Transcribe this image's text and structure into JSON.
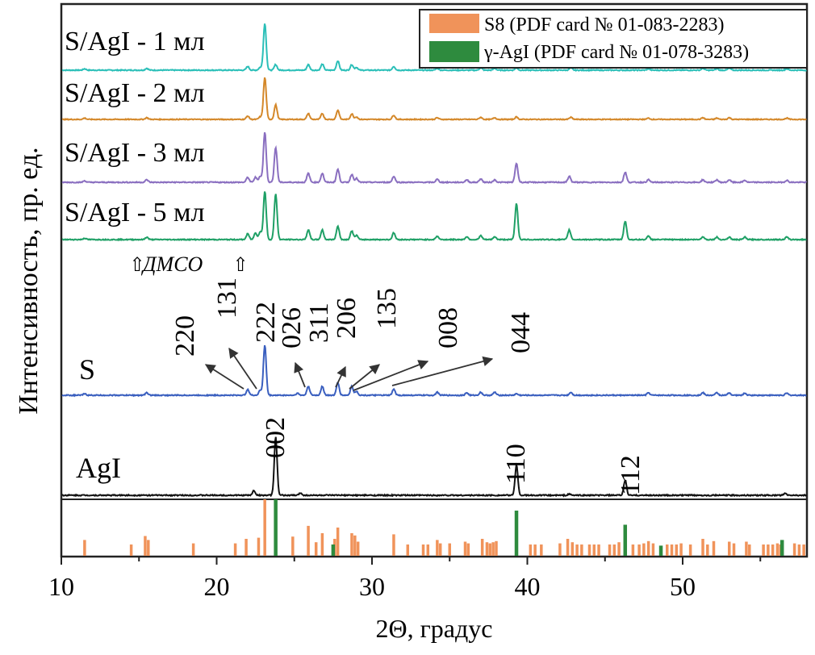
{
  "chart_data": {
    "type": "line",
    "xlabel": "2Θ, градус",
    "ylabel": "Интенсивность, пр. ед.",
    "xlim": [
      10,
      58
    ],
    "xticks": [
      10,
      20,
      30,
      40,
      50
    ],
    "grid": false,
    "legend": {
      "placement": "top-right",
      "entries": [
        {
          "name": "S8 (PDF card № 01-083-2283)",
          "color": "#f0935a"
        },
        {
          "name": "γ-AgI (PDF card № 01-078-3283)",
          "color": "#2e8b3e"
        }
      ]
    },
    "series": [
      {
        "name": "S/AgI - 1 мл",
        "color": "#2bbfb8",
        "peaks": [
          [
            11.5,
            0.03
          ],
          [
            15.5,
            0.04
          ],
          [
            22.0,
            0.08
          ],
          [
            22.8,
            0.06
          ],
          [
            23.1,
            1
          ],
          [
            23.8,
            0.12
          ],
          [
            25.9,
            0.12
          ],
          [
            26.8,
            0.13
          ],
          [
            27.8,
            0.2
          ],
          [
            28.7,
            0.12
          ],
          [
            29.0,
            0.06
          ],
          [
            31.4,
            0.08
          ],
          [
            34.2,
            0.04
          ],
          [
            37.0,
            0.05
          ],
          [
            37.9,
            0.04
          ],
          [
            39.3,
            0.05
          ],
          [
            42.8,
            0.05
          ],
          [
            47.8,
            0.03
          ],
          [
            51.3,
            0.04
          ],
          [
            52.2,
            0.03
          ],
          [
            53.0,
            0.04
          ],
          [
            56.7,
            0.03
          ]
        ]
      },
      {
        "name": "S/AgI - 2 мл",
        "color": "#d4882a",
        "peaks": [
          [
            11.5,
            0.03
          ],
          [
            15.5,
            0.04
          ],
          [
            22.0,
            0.08
          ],
          [
            22.8,
            0.06
          ],
          [
            23.1,
            1
          ],
          [
            23.8,
            0.35
          ],
          [
            25.9,
            0.14
          ],
          [
            26.8,
            0.14
          ],
          [
            27.8,
            0.22
          ],
          [
            28.7,
            0.13
          ],
          [
            29.0,
            0.06
          ],
          [
            31.4,
            0.1
          ],
          [
            34.2,
            0.04
          ],
          [
            37.0,
            0.05
          ],
          [
            37.9,
            0.04
          ],
          [
            39.3,
            0.06
          ],
          [
            42.8,
            0.05
          ],
          [
            47.8,
            0.03
          ],
          [
            51.3,
            0.04
          ],
          [
            52.2,
            0.03
          ],
          [
            53.0,
            0.04
          ],
          [
            56.7,
            0.03
          ]
        ]
      },
      {
        "name": "S/AgI - 3 мл",
        "color": "#8a6fc0",
        "peaks": [
          [
            11.5,
            0.03
          ],
          [
            15.5,
            0.05
          ],
          [
            22.0,
            0.1
          ],
          [
            22.5,
            0.1
          ],
          [
            22.8,
            0.12
          ],
          [
            23.1,
            1
          ],
          [
            23.8,
            0.7
          ],
          [
            25.9,
            0.18
          ],
          [
            26.8,
            0.18
          ],
          [
            27.8,
            0.26
          ],
          [
            28.7,
            0.16
          ],
          [
            29.0,
            0.08
          ],
          [
            31.4,
            0.12
          ],
          [
            34.2,
            0.06
          ],
          [
            36.1,
            0.05
          ],
          [
            37.0,
            0.07
          ],
          [
            37.9,
            0.05
          ],
          [
            39.3,
            0.38
          ],
          [
            42.7,
            0.12
          ],
          [
            46.3,
            0.2
          ],
          [
            47.8,
            0.05
          ],
          [
            51.3,
            0.05
          ],
          [
            52.2,
            0.05
          ],
          [
            53.0,
            0.05
          ],
          [
            54.0,
            0.04
          ],
          [
            56.7,
            0.04
          ]
        ]
      },
      {
        "name": "S/AgI - 5 мл",
        "color": "#1fa066",
        "peaks": [
          [
            11.5,
            0.03
          ],
          [
            15.5,
            0.05
          ],
          [
            22.0,
            0.12
          ],
          [
            22.5,
            0.14
          ],
          [
            22.8,
            0.16
          ],
          [
            23.1,
            1
          ],
          [
            23.8,
            0.95
          ],
          [
            25.9,
            0.2
          ],
          [
            26.8,
            0.2
          ],
          [
            27.8,
            0.28
          ],
          [
            28.7,
            0.18
          ],
          [
            29.0,
            0.09
          ],
          [
            31.4,
            0.14
          ],
          [
            34.2,
            0.07
          ],
          [
            36.1,
            0.06
          ],
          [
            37.0,
            0.08
          ],
          [
            37.9,
            0.06
          ],
          [
            39.3,
            0.75
          ],
          [
            42.7,
            0.2
          ],
          [
            46.3,
            0.38
          ],
          [
            47.8,
            0.07
          ],
          [
            51.3,
            0.06
          ],
          [
            52.2,
            0.05
          ],
          [
            53.0,
            0.05
          ],
          [
            54.0,
            0.05
          ],
          [
            56.7,
            0.05
          ]
        ]
      },
      {
        "name": "S",
        "color": "#3a5fbf",
        "peaks": [
          [
            11.5,
            0.03
          ],
          [
            15.5,
            0.05
          ],
          [
            22.0,
            0.12
          ],
          [
            22.8,
            0.1
          ],
          [
            23.1,
            1
          ],
          [
            25.2,
            0.04
          ],
          [
            25.9,
            0.18
          ],
          [
            26.8,
            0.18
          ],
          [
            27.8,
            0.25
          ],
          [
            28.7,
            0.18
          ],
          [
            29.0,
            0.08
          ],
          [
            31.4,
            0.12
          ],
          [
            34.2,
            0.06
          ],
          [
            36.1,
            0.05
          ],
          [
            37.0,
            0.06
          ],
          [
            37.9,
            0.06
          ],
          [
            39.3,
            0.03
          ],
          [
            42.8,
            0.06
          ],
          [
            47.8,
            0.05
          ],
          [
            51.3,
            0.05
          ],
          [
            52.2,
            0.05
          ],
          [
            53.0,
            0.05
          ],
          [
            54.0,
            0.04
          ],
          [
            56.7,
            0.04
          ]
        ]
      },
      {
        "name": "AgI",
        "color": "#111111",
        "peaks": [
          [
            22.4,
            0.08
          ],
          [
            23.8,
            1
          ],
          [
            25.4,
            0.04
          ],
          [
            39.3,
            0.52
          ],
          [
            42.7,
            0.02
          ],
          [
            46.3,
            0.26
          ],
          [
            56.6,
            0.03
          ]
        ]
      }
    ],
    "annotations": {
      "dmso": "ДМСО",
      "s_hkl": [
        {
          "label": "220",
          "x": 22.0
        },
        {
          "label": "131",
          "x": 22.8
        },
        {
          "label": "222",
          "x": 23.1
        },
        {
          "label": "026",
          "x": 25.9
        },
        {
          "label": "311",
          "x": 26.8
        },
        {
          "label": "206",
          "x": 27.8
        },
        {
          "label": "135",
          "x": 28.7
        },
        {
          "label": "008",
          "x": 29.0
        },
        {
          "label": "044",
          "x": 31.4
        }
      ],
      "agi_hkl": [
        {
          "label": "002",
          "x": 23.8
        },
        {
          "label": "110",
          "x": 39.3
        },
        {
          "label": "112",
          "x": 46.3
        }
      ]
    },
    "reference_sticks": {
      "S8": [
        [
          11.5,
          0.28
        ],
        [
          14.5,
          0.2
        ],
        [
          15.4,
          0.35
        ],
        [
          15.6,
          0.28
        ],
        [
          18.5,
          0.22
        ],
        [
          21.2,
          0.22
        ],
        [
          21.9,
          0.3
        ],
        [
          22.7,
          0.32
        ],
        [
          23.1,
          1
        ],
        [
          24.9,
          0.34
        ],
        [
          25.9,
          0.53
        ],
        [
          26.4,
          0.24
        ],
        [
          26.8,
          0.4
        ],
        [
          27.6,
          0.3
        ],
        [
          27.8,
          0.5
        ],
        [
          28.7,
          0.4
        ],
        [
          28.9,
          0.36
        ],
        [
          29.1,
          0.25
        ],
        [
          31.4,
          0.38
        ],
        [
          32.3,
          0.2
        ],
        [
          33.3,
          0.2
        ],
        [
          33.6,
          0.2
        ],
        [
          34.2,
          0.28
        ],
        [
          34.4,
          0.22
        ],
        [
          35.0,
          0.22
        ],
        [
          36.0,
          0.25
        ],
        [
          36.2,
          0.22
        ],
        [
          37.1,
          0.3
        ],
        [
          37.4,
          0.24
        ],
        [
          37.6,
          0.22
        ],
        [
          37.8,
          0.24
        ],
        [
          38.0,
          0.26
        ],
        [
          40.2,
          0.2
        ],
        [
          40.5,
          0.2
        ],
        [
          40.9,
          0.2
        ],
        [
          42.1,
          0.22
        ],
        [
          42.6,
          0.3
        ],
        [
          42.9,
          0.24
        ],
        [
          43.2,
          0.2
        ],
        [
          43.5,
          0.2
        ],
        [
          44.0,
          0.2
        ],
        [
          44.3,
          0.2
        ],
        [
          44.6,
          0.2
        ],
        [
          45.3,
          0.2
        ],
        [
          45.6,
          0.2
        ],
        [
          45.9,
          0.24
        ],
        [
          46.8,
          0.2
        ],
        [
          47.2,
          0.2
        ],
        [
          47.5,
          0.22
        ],
        [
          47.8,
          0.26
        ],
        [
          48.1,
          0.22
        ],
        [
          49.0,
          0.2
        ],
        [
          49.3,
          0.2
        ],
        [
          49.6,
          0.2
        ],
        [
          49.9,
          0.22
        ],
        [
          50.5,
          0.2
        ],
        [
          51.3,
          0.3
        ],
        [
          51.6,
          0.2
        ],
        [
          52.0,
          0.26
        ],
        [
          53.0,
          0.25
        ],
        [
          53.3,
          0.22
        ],
        [
          54.1,
          0.25
        ],
        [
          54.3,
          0.2
        ],
        [
          55.2,
          0.2
        ],
        [
          55.5,
          0.2
        ],
        [
          55.8,
          0.2
        ],
        [
          56.1,
          0.22
        ],
        [
          56.3,
          0.2
        ],
        [
          57.2,
          0.22
        ],
        [
          57.5,
          0.2
        ],
        [
          57.8,
          0.2
        ]
      ],
      "gamma-AgI": [
        [
          23.8,
          1
        ],
        [
          27.5,
          0.2
        ],
        [
          39.3,
          0.8
        ],
        [
          46.3,
          0.55
        ],
        [
          48.6,
          0.18
        ],
        [
          56.4,
          0.28
        ]
      ]
    }
  }
}
